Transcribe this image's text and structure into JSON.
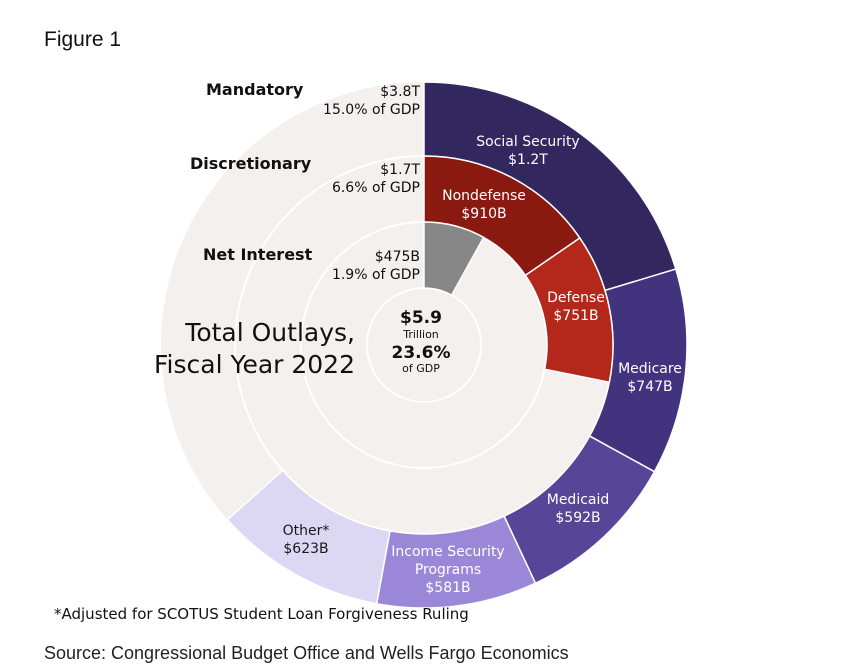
{
  "figure_label": "Figure 1",
  "footnote": "*Adjusted for SCOTUS Student Loan Forgiveness Ruling",
  "source": "Source: Congressional Budget Office and Wells Fargo Economics",
  "colors": {
    "background_ring": "#f3f0ed",
    "ring_border": "#ffffff",
    "social_security": "#33275f",
    "medicare": "#42337e",
    "medicaid": "#574597",
    "income_security": "#9b87d7",
    "other": "#dcd7f3",
    "nondefense": "#8a1a10",
    "defense": "#b3281b",
    "net_interest": "#878787"
  },
  "chart_data": {
    "type": "pie",
    "title": [
      "Total Outlays,",
      "Fiscal Year 2022"
    ],
    "center": {
      "value": "$5.9",
      "unit": "Trillion",
      "pct": "23.6%",
      "pct_label": "of GDP"
    },
    "total_billions": 5900,
    "rings": [
      {
        "name": "Mandatory",
        "total": "$3.8T",
        "share": "15.0% of GDP",
        "slices": [
          {
            "label": "Social Security",
            "value_label": "$1.2T",
            "value": 1200,
            "color_key": "social_security"
          },
          {
            "label": "Medicare",
            "value_label": "$747B",
            "value": 747,
            "color_key": "medicare"
          },
          {
            "label": "Medicaid",
            "value_label": "$592B",
            "value": 592,
            "color_key": "medicaid"
          },
          {
            "label": "Income Security Programs",
            "value_label": "$581B",
            "value": 581,
            "color_key": "income_security"
          },
          {
            "label": "Other*",
            "value_label": "$623B",
            "value": 623,
            "color_key": "other"
          }
        ]
      },
      {
        "name": "Discretionary",
        "total": "$1.7T",
        "share": "6.6% of GDP",
        "slices": [
          {
            "label": "Nondefense",
            "value_label": "$910B",
            "value": 910,
            "color_key": "nondefense"
          },
          {
            "label": "Defense",
            "value_label": "$751B",
            "value": 751,
            "color_key": "defense"
          }
        ]
      },
      {
        "name": "Net Interest",
        "total": "$475B",
        "share": "1.9% of GDP",
        "slices": [
          {
            "label": "",
            "value_label": "",
            "value": 475,
            "color_key": "net_interest"
          }
        ]
      }
    ]
  }
}
